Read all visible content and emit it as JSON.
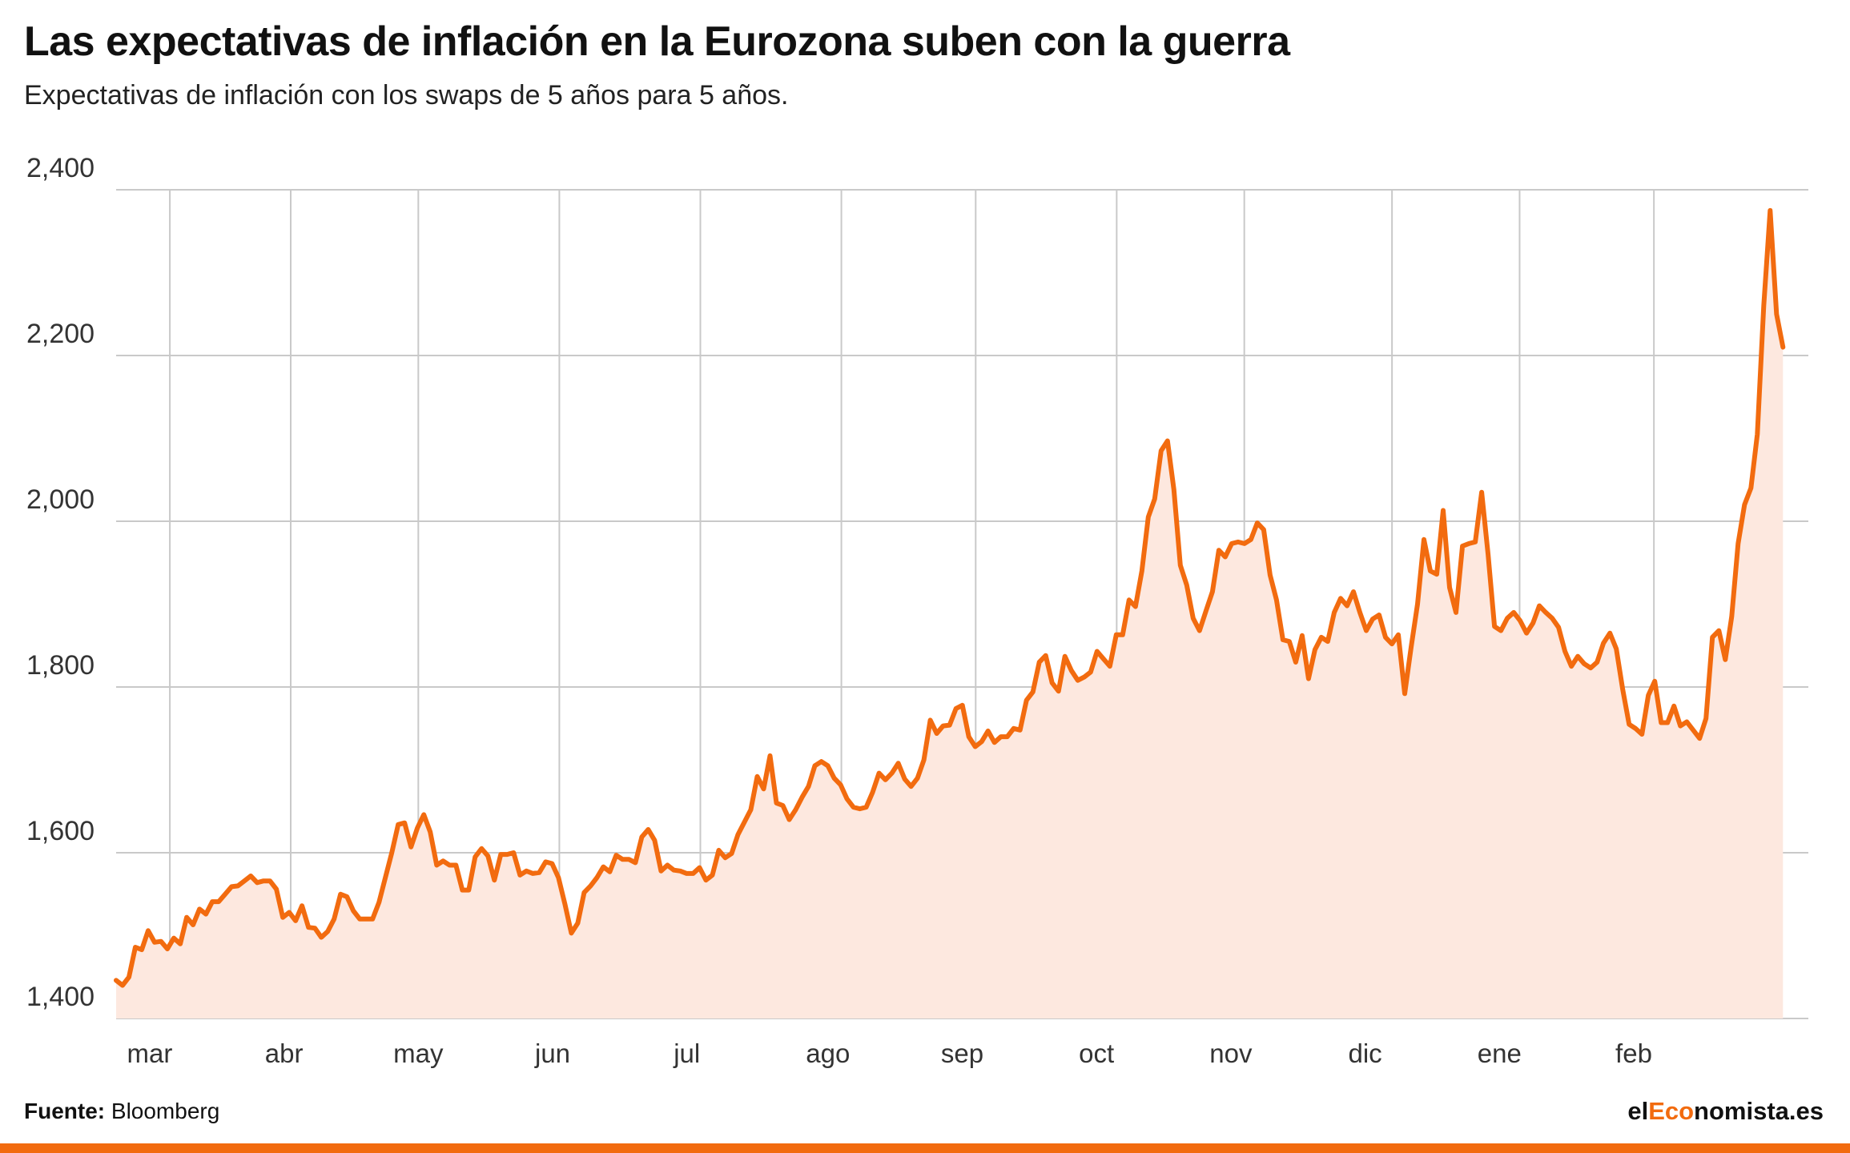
{
  "title": "Las expectativas de inflación en la Eurozona suben con la guerra",
  "subtitle": "Expectativas de inflación con los swaps de 5 años para 5 años.",
  "source_label": "Fuente:",
  "source_value": "Bloomberg",
  "brand": {
    "prefix": "el",
    "highlight": "Eco",
    "suffix": "nomista.es"
  },
  "colors": {
    "accent": "#f26b0f",
    "line": "#f26b0f",
    "area": "#fde8df",
    "grid": "#c9c9c9",
    "axis_text": "#333333"
  },
  "chart_data": {
    "type": "area",
    "title": "Las expectativas de inflación en la Eurozona suben con la guerra",
    "subtitle": "Expectativas de inflación con los swaps de 5 años para 5 años.",
    "xlabel": "",
    "ylabel": "",
    "ylim": [
      1400,
      2400
    ],
    "y_ticks": [
      1400,
      1600,
      1800,
      2000,
      2200,
      2400
    ],
    "y_tick_labels": [
      "1,400",
      "1,600",
      "1,800",
      "2,000",
      "2,200",
      "2,400"
    ],
    "months": [
      "mar",
      "abr",
      "may",
      "jun",
      "jul",
      "ago",
      "sep",
      "oct",
      "nov",
      "dic",
      "ene",
      "feb"
    ],
    "month_boundaries": [
      8,
      26,
      45,
      66,
      87,
      108,
      128,
      149,
      168,
      190,
      209,
      229
    ],
    "month_label_positions": [
      5,
      25,
      45,
      65,
      85,
      106,
      126,
      146,
      166,
      186,
      206,
      226
    ],
    "x_max": 252,
    "grid": true,
    "legend": "none",
    "values": [
      1446,
      1440,
      1450,
      1486,
      1483,
      1506,
      1492,
      1493,
      1484,
      1497,
      1490,
      1522,
      1513,
      1532,
      1526,
      1541,
      1541,
      1550,
      1559,
      1560,
      1566,
      1572,
      1564,
      1566,
      1566,
      1556,
      1522,
      1528,
      1518,
      1536,
      1510,
      1509,
      1498,
      1505,
      1520,
      1550,
      1547,
      1530,
      1520,
      1520,
      1520,
      1540,
      1570,
      1600,
      1634,
      1636,
      1607,
      1630,
      1646,
      1625,
      1585,
      1590,
      1585,
      1585,
      1555,
      1555,
      1595,
      1605,
      1596,
      1567,
      1598,
      1598,
      1600,
      1573,
      1578,
      1575,
      1576,
      1589,
      1587,
      1570,
      1538,
      1503,
      1515,
      1552,
      1560,
      1570,
      1583,
      1577,
      1597,
      1592,
      1592,
      1588,
      1619,
      1628,
      1615,
      1578,
      1585,
      1579,
      1578,
      1575,
      1575,
      1582,
      1567,
      1573,
      1603,
      1594,
      1599,
      1622,
      1637,
      1652,
      1692,
      1677,
      1717,
      1660,
      1657,
      1640,
      1652,
      1667,
      1680,
      1705,
      1710,
      1705,
      1690,
      1682,
      1665,
      1655,
      1653,
      1655,
      1673,
      1696,
      1688,
      1696,
      1708,
      1689,
      1680,
      1690,
      1712,
      1760,
      1744,
      1753,
      1754,
      1774,
      1778,
      1740,
      1728,
      1734,
      1747,
      1733,
      1740,
      1740,
      1750,
      1748,
      1784,
      1794,
      1830,
      1838,
      1805,
      1795,
      1837,
      1820,
      1808,
      1812,
      1818,
      1843,
      1834,
      1825,
      1863,
      1863,
      1905,
      1897,
      1940,
      2005,
      2027,
      2085,
      2097,
      2038,
      1947,
      1923,
      1883,
      1868,
      1892,
      1915,
      1965,
      1957,
      1973,
      1975,
      1973,
      1978,
      1998,
      1990,
      1935,
      1905,
      1857,
      1855,
      1830,
      1862,
      1810,
      1845,
      1860,
      1855,
      1890,
      1907,
      1898,
      1915,
      1890,
      1868,
      1882,
      1887,
      1860,
      1852,
      1863,
      1792,
      1848,
      1900,
      1978,
      1940,
      1936,
      2013,
      1920,
      1890,
      1970,
      1973,
      1975,
      2035,
      1960,
      1873,
      1868,
      1883,
      1890,
      1880,
      1865,
      1877,
      1898,
      1890,
      1883,
      1872,
      1843,
      1825,
      1837,
      1828,
      1823,
      1830,
      1853,
      1865,
      1846,
      1797,
      1755,
      1750,
      1743,
      1790,
      1807,
      1757,
      1757,
      1777,
      1753,
      1758,
      1748,
      1738,
      1762,
      1860,
      1868,
      1833,
      1885,
      1973,
      2020,
      2040,
      2105,
      2260,
      2375,
      2250,
      2210
    ]
  }
}
